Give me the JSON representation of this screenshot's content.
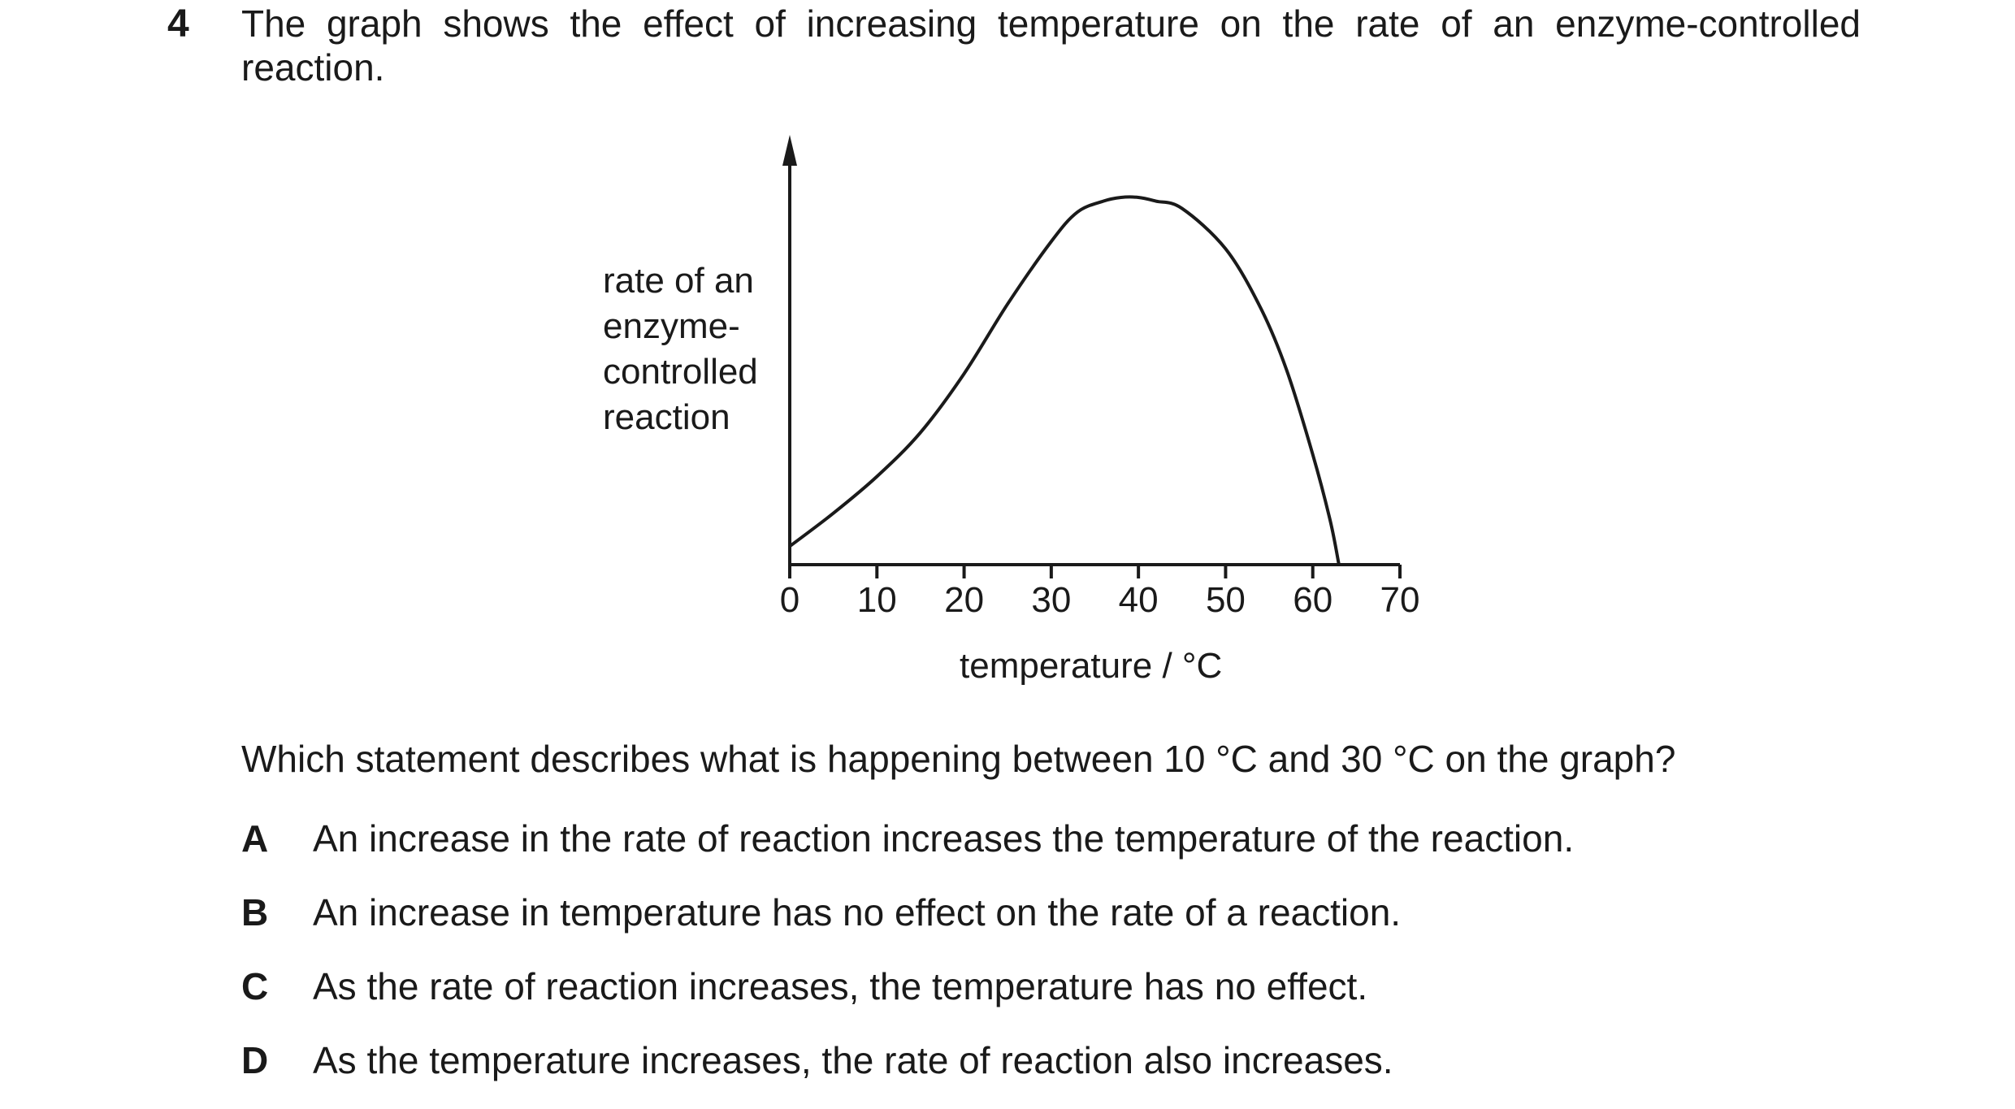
{
  "question": {
    "number": "4",
    "stem": "The graph shows the effect of increasing temperature on the rate of an enzyme-controlled reaction."
  },
  "chart_data": {
    "type": "line",
    "ylabel_lines": [
      "rate of an",
      "enzyme-",
      "controlled",
      "reaction"
    ],
    "xlabel": "temperature / °C",
    "xlim": [
      0,
      70
    ],
    "x_ticks": [
      0,
      10,
      20,
      30,
      40,
      50,
      60,
      70
    ],
    "y_tick_labels": false,
    "y_units": "relative",
    "series": [
      {
        "x": [
          0,
          5,
          10,
          15,
          20,
          25,
          30,
          33,
          36,
          38,
          40,
          42,
          45,
          50,
          54,
          57,
          60,
          62,
          63
        ],
        "y": [
          0.05,
          0.14,
          0.24,
          0.36,
          0.52,
          0.71,
          0.88,
          0.96,
          0.99,
          1.0,
          1.0,
          0.99,
          0.97,
          0.86,
          0.7,
          0.53,
          0.3,
          0.12,
          0.0
        ]
      }
    ]
  },
  "prompt": "Which statement describes what is happening between 10 °C and 30 °C on the graph?",
  "options": [
    {
      "letter": "A",
      "text": "An increase in the rate of reaction increases the temperature of the reaction."
    },
    {
      "letter": "B",
      "text": "An increase in temperature has no effect on the rate of a reaction."
    },
    {
      "letter": "C",
      "text": "As the rate of reaction increases, the temperature has no effect."
    },
    {
      "letter": "D",
      "text": "As the temperature increases, the rate of reaction also increases."
    }
  ]
}
